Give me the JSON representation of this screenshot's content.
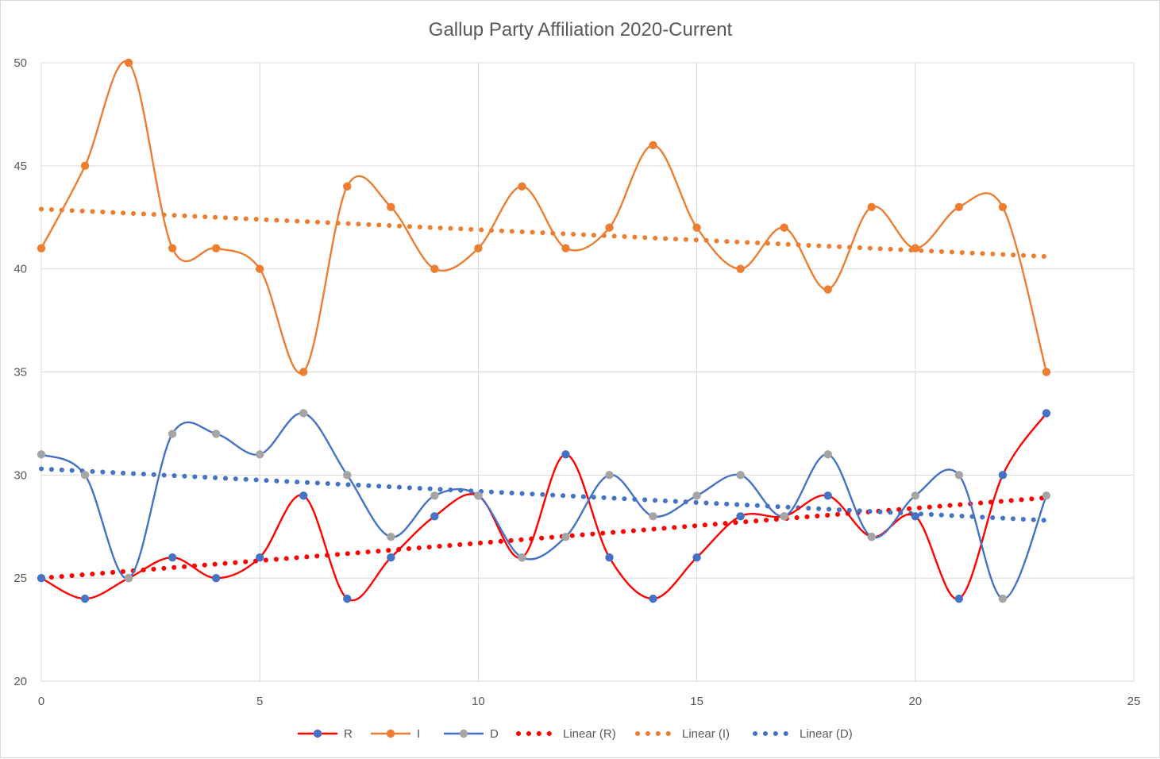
{
  "chart_data": {
    "type": "scatter",
    "title": "Gallup Party Affiliation 2020-Current",
    "xlabel": "",
    "ylabel": "",
    "xlim": [
      0,
      25
    ],
    "ylim": [
      20,
      50
    ],
    "x_ticks": [
      0,
      5,
      10,
      15,
      20,
      25
    ],
    "y_ticks": [
      20,
      25,
      30,
      35,
      40,
      45,
      50
    ],
    "grid": true,
    "legend_position": "bottom",
    "x": [
      0,
      1,
      2,
      3,
      4,
      5,
      6,
      7,
      8,
      9,
      10,
      11,
      12,
      13,
      14,
      15,
      16,
      17,
      18,
      19,
      20,
      21,
      22,
      23
    ],
    "series": [
      {
        "name": "R",
        "line_color": "#ff0000",
        "marker_color": "#4472c4",
        "style": "smooth-line-markers",
        "values": [
          25,
          24,
          25,
          26,
          25,
          26,
          29,
          24,
          26,
          28,
          29,
          26,
          31,
          26,
          24,
          26,
          28,
          28,
          29,
          27,
          28,
          24,
          30,
          33
        ]
      },
      {
        "name": "I",
        "line_color": "#ed7d31",
        "marker_color": "#ed7d31",
        "style": "smooth-line-markers",
        "values": [
          41,
          45,
          50,
          41,
          41,
          40,
          35,
          44,
          43,
          40,
          41,
          44,
          41,
          42,
          46,
          42,
          40,
          42,
          39,
          43,
          41,
          43,
          43,
          35
        ]
      },
      {
        "name": "D",
        "line_color": "#4472c4",
        "marker_color": "#a5a5a5",
        "style": "smooth-line-markers",
        "values": [
          31,
          30,
          25,
          32,
          32,
          31,
          33,
          30,
          27,
          29,
          29,
          26,
          27,
          30,
          28,
          29,
          30,
          28,
          31,
          27,
          29,
          30,
          24,
          29
        ]
      }
    ],
    "trendlines": [
      {
        "name": "Linear (R)",
        "of": "R",
        "color": "#ff0000",
        "style": "dotted",
        "start": [
          0,
          25.0
        ],
        "end": [
          23,
          28.9
        ]
      },
      {
        "name": "Linear (I)",
        "of": "I",
        "color": "#ed7d31",
        "style": "dotted",
        "start": [
          0,
          42.9
        ],
        "end": [
          23,
          40.6
        ]
      },
      {
        "name": "Linear (D)",
        "of": "D",
        "color": "#4472c4",
        "style": "dotted",
        "start": [
          0,
          30.3
        ],
        "end": [
          23,
          27.8
        ]
      }
    ],
    "legend": [
      "R",
      "I",
      "D",
      "Linear (R)",
      "Linear (I)",
      "Linear (D)"
    ]
  }
}
